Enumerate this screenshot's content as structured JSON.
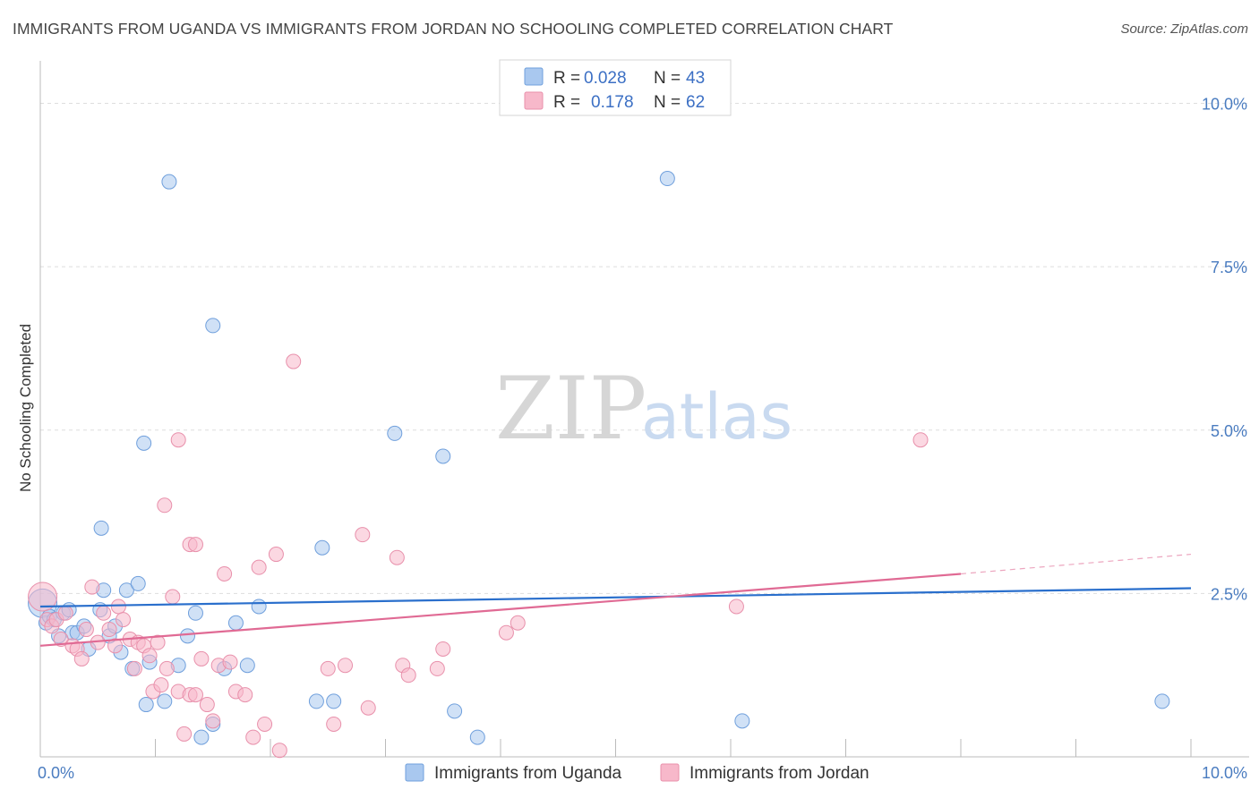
{
  "header": {
    "title": "IMMIGRANTS FROM UGANDA VS IMMIGRANTS FROM JORDAN NO SCHOOLING COMPLETED CORRELATION CHART",
    "source": "Source: ZipAtlas.com"
  },
  "watermark": {
    "zip": "ZIP",
    "atlas": "atlas"
  },
  "legend": {
    "series": [
      {
        "r_label": "R =",
        "r_value": "0.028",
        "n_label": "N =",
        "n_value": "43",
        "color": "#a9c8ef",
        "stroke": "#6f9fdc"
      },
      {
        "r_label": "R =",
        "r_value": "0.178",
        "n_label": "N =",
        "n_value": "62",
        "color": "#f7b8ca",
        "stroke": "#e890ab"
      }
    ]
  },
  "bottom_legend": [
    {
      "label": "Immigrants from Uganda",
      "color": "#a9c8ef",
      "stroke": "#6f9fdc"
    },
    {
      "label": "Immigrants from Jordan",
      "color": "#f7b8ca",
      "stroke": "#e890ab"
    }
  ],
  "chart_data": {
    "type": "scatter",
    "title": "IMMIGRANTS FROM UGANDA VS IMMIGRANTS FROM JORDAN NO SCHOOLING COMPLETED CORRELATION CHART",
    "ylabel": "No Schooling Completed",
    "xlabel": "",
    "xlim": [
      0,
      10
    ],
    "ylim": [
      0,
      10.5
    ],
    "x_tick_labels": [
      {
        "value": 0,
        "label": "0.0%"
      },
      {
        "value": 10,
        "label": "10.0%"
      }
    ],
    "y_tick_labels": [
      {
        "value": 2.5,
        "label": "2.5%"
      },
      {
        "value": 5.0,
        "label": "5.0%"
      },
      {
        "value": 7.5,
        "label": "7.5%"
      },
      {
        "value": 10.0,
        "label": "10.0%"
      }
    ],
    "grid": true,
    "legend_position": "top-center",
    "series": [
      {
        "name": "Immigrants from Uganda",
        "color": "#6f9fdc",
        "fill": "#a9c8ef",
        "trend": {
          "x": [
            0,
            10
          ],
          "y": [
            2.3,
            2.58
          ],
          "color": "#2a6fcc"
        },
        "points": [
          [
            0.02,
            2.35
          ],
          [
            0.05,
            2.05
          ],
          [
            0.08,
            2.15
          ],
          [
            0.12,
            2.1
          ],
          [
            0.16,
            1.85
          ],
          [
            0.2,
            2.2
          ],
          [
            0.25,
            2.25
          ],
          [
            0.28,
            1.9
          ],
          [
            0.32,
            1.9
          ],
          [
            0.38,
            2.0
          ],
          [
            0.42,
            1.65
          ],
          [
            0.53,
            3.5
          ],
          [
            0.55,
            2.55
          ],
          [
            0.52,
            2.25
          ],
          [
            0.6,
            1.85
          ],
          [
            0.65,
            2.0
          ],
          [
            0.7,
            1.6
          ],
          [
            0.75,
            2.55
          ],
          [
            0.8,
            1.35
          ],
          [
            0.85,
            2.65
          ],
          [
            0.95,
            1.45
          ],
          [
            0.92,
            0.8
          ],
          [
            1.08,
            0.85
          ],
          [
            1.2,
            1.4
          ],
          [
            1.28,
            1.85
          ],
          [
            1.35,
            2.2
          ],
          [
            1.4,
            0.3
          ],
          [
            1.5,
            0.5
          ],
          [
            1.6,
            1.35
          ],
          [
            1.7,
            2.05
          ],
          [
            1.8,
            1.4
          ],
          [
            1.9,
            2.3
          ],
          [
            0.9,
            4.8
          ],
          [
            1.12,
            8.8
          ],
          [
            1.5,
            6.6
          ],
          [
            2.4,
            0.85
          ],
          [
            2.55,
            0.85
          ],
          [
            2.45,
            3.2
          ],
          [
            3.08,
            4.95
          ],
          [
            3.5,
            4.6
          ],
          [
            3.6,
            0.7
          ],
          [
            3.8,
            0.3
          ],
          [
            5.45,
            8.85
          ],
          [
            6.1,
            0.55
          ],
          [
            9.75,
            0.85
          ]
        ]
      },
      {
        "name": "Immigrants from Jordan",
        "color": "#e890ab",
        "fill": "#f7b8ca",
        "trend": {
          "x": [
            0,
            8.0
          ],
          "y": [
            1.7,
            2.8
          ],
          "color": "#e06a94",
          "dashed_to": [
            10,
            3.1
          ]
        },
        "points": [
          [
            0.02,
            2.45
          ],
          [
            0.06,
            2.1
          ],
          [
            0.1,
            2.0
          ],
          [
            0.14,
            2.1
          ],
          [
            0.18,
            1.8
          ],
          [
            0.22,
            2.2
          ],
          [
            0.28,
            1.7
          ],
          [
            0.32,
            1.65
          ],
          [
            0.36,
            1.5
          ],
          [
            0.4,
            1.95
          ],
          [
            0.45,
            2.6
          ],
          [
            0.5,
            1.75
          ],
          [
            0.55,
            2.2
          ],
          [
            0.6,
            1.95
          ],
          [
            0.65,
            1.7
          ],
          [
            0.68,
            2.3
          ],
          [
            0.72,
            2.1
          ],
          [
            0.78,
            1.8
          ],
          [
            0.82,
            1.35
          ],
          [
            0.85,
            1.75
          ],
          [
            0.9,
            1.7
          ],
          [
            0.95,
            1.55
          ],
          [
            0.98,
            1.0
          ],
          [
            1.02,
            1.75
          ],
          [
            1.05,
            1.1
          ],
          [
            1.1,
            1.35
          ],
          [
            1.15,
            2.45
          ],
          [
            1.2,
            1.0
          ],
          [
            1.25,
            0.35
          ],
          [
            1.3,
            0.95
          ],
          [
            1.35,
            0.95
          ],
          [
            1.4,
            1.5
          ],
          [
            1.45,
            0.8
          ],
          [
            1.5,
            0.55
          ],
          [
            1.55,
            1.4
          ],
          [
            1.6,
            2.8
          ],
          [
            1.65,
            1.45
          ],
          [
            1.7,
            1.0
          ],
          [
            1.78,
            0.95
          ],
          [
            1.85,
            0.3
          ],
          [
            1.9,
            2.9
          ],
          [
            1.95,
            0.5
          ],
          [
            2.05,
            3.1
          ],
          [
            2.08,
            0.1
          ],
          [
            2.2,
            6.05
          ],
          [
            1.08,
            3.85
          ],
          [
            1.2,
            4.85
          ],
          [
            1.3,
            3.25
          ],
          [
            1.35,
            3.25
          ],
          [
            2.5,
            1.35
          ],
          [
            2.55,
            0.5
          ],
          [
            2.65,
            1.4
          ],
          [
            2.8,
            3.4
          ],
          [
            2.85,
            0.75
          ],
          [
            3.1,
            3.05
          ],
          [
            3.15,
            1.4
          ],
          [
            3.2,
            1.25
          ],
          [
            3.45,
            1.35
          ],
          [
            3.5,
            1.65
          ],
          [
            4.05,
            1.9
          ],
          [
            4.15,
            2.05
          ],
          [
            6.05,
            2.3
          ],
          [
            7.65,
            4.85
          ]
        ]
      }
    ]
  }
}
